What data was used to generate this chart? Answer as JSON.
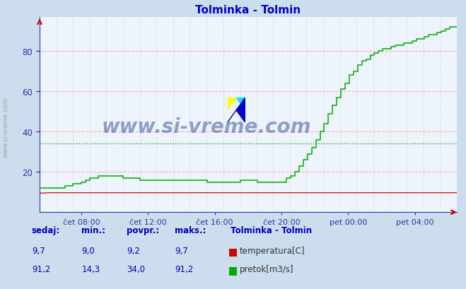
{
  "title": "Tolminka - Tolmin",
  "title_color": "#0000cc",
  "bg_color": "#ccdded",
  "plot_bg_color": "#eef4fb",
  "grid_color_h": "#ffaaaa",
  "grid_color_v": "#bbbbdd",
  "x_tick_labels": [
    "čet 08:00",
    "čet 12:00",
    "čet 16:00",
    "čet 20:00",
    "pet 00:00",
    "pet 04:00"
  ],
  "y_min": 0,
  "y_max": 97,
  "y_ticks": [
    20,
    40,
    60,
    80
  ],
  "avg_flow_line": 34.0,
  "watermark_text": "www.si-vreme.com",
  "watermark_color": "#1a3a8a",
  "watermark_alpha": 0.45,
  "legend_title": "Tolminka - Tolmin",
  "temp_color": "#dd0000",
  "flow_color": "#00aa00",
  "axis_color": "#3333aa",
  "tick_color": "#3333aa",
  "side_watermark": "www.si-vreme.com",
  "table_header_color": "#0000bb",
  "table_value_color": "#0000bb"
}
